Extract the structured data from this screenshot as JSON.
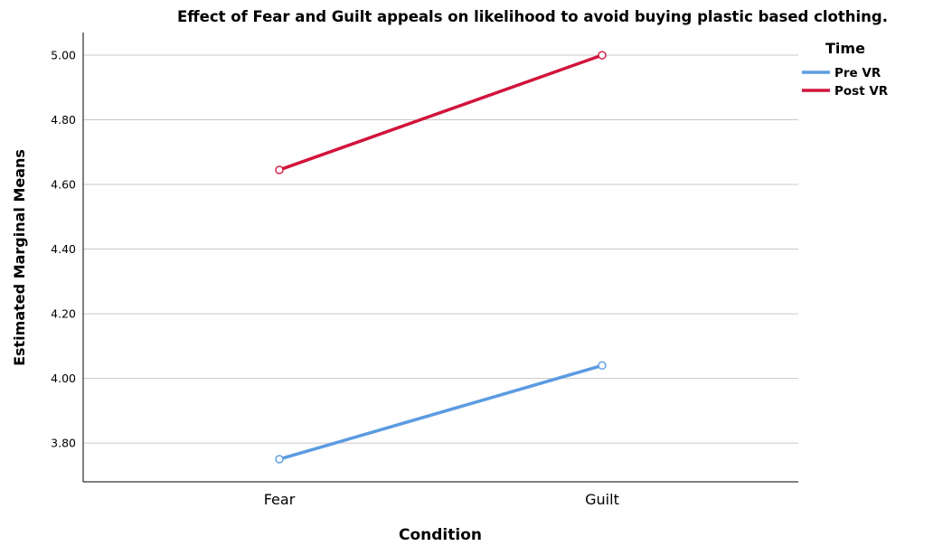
{
  "chart_data": {
    "type": "line",
    "title": "Effect of Fear and Guilt appeals on likelihood to avoid buying plastic based clothing.",
    "xlabel": "Condition",
    "ylabel": "Estimated Marginal Means",
    "categories": [
      "Fear",
      "Guilt"
    ],
    "ylim": [
      3.68,
      5.07
    ],
    "yticks": [
      3.8,
      4.0,
      4.2,
      4.4,
      4.6,
      4.8,
      5.0
    ],
    "ytick_labels": [
      "3.80",
      "4.00",
      "4.20",
      "4.40",
      "4.60",
      "4.80",
      "5.00"
    ],
    "grid": true,
    "legend": {
      "title": "Time",
      "position": "right"
    },
    "series": [
      {
        "name": "Pre VR",
        "color": "#5b9be0",
        "values": [
          3.75,
          4.04
        ]
      },
      {
        "name": "Post VR",
        "color": "#d2143c",
        "values": [
          4.645,
          5.0
        ]
      }
    ]
  }
}
